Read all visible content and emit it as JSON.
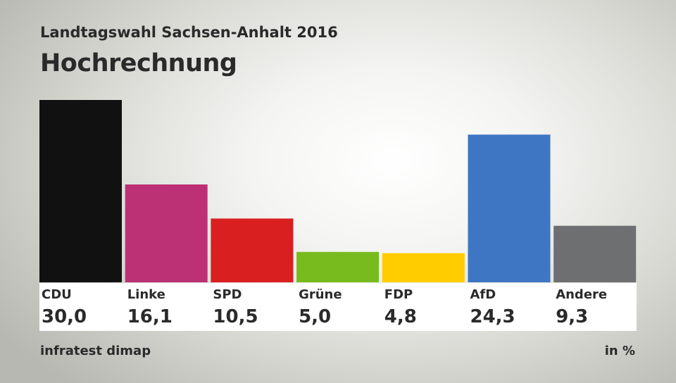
{
  "header": {
    "subtitle": "Landtagswahl Sachsen-Anhalt 2016",
    "title": "Hochrechnung"
  },
  "footer": {
    "source": "infratest dimap",
    "unit": "in %"
  },
  "chart_data": {
    "type": "bar",
    "title": "Hochrechnung",
    "subtitle": "Landtagswahl Sachsen-Anhalt 2016",
    "xlabel": "",
    "ylabel": "in %",
    "ylim": [
      0,
      30
    ],
    "categories": [
      "CDU",
      "Linke",
      "SPD",
      "Grüne",
      "FDP",
      "AfD",
      "Andere"
    ],
    "values": [
      30.0,
      16.1,
      10.5,
      5.0,
      4.8,
      24.3,
      9.3
    ],
    "value_labels": [
      "30,0",
      "16,1",
      "10,5",
      "5,0",
      "4,8",
      "24,3",
      "9,3"
    ],
    "colors": [
      "#111111",
      "#bc3175",
      "#d91f20",
      "#78bb1f",
      "#ffcc00",
      "#3f76c4",
      "#6e6f71"
    ],
    "grid": false,
    "legend": "none"
  }
}
